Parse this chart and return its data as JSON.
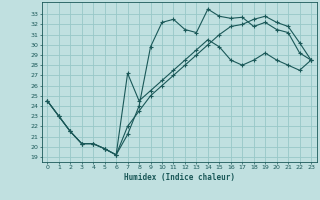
{
  "xlabel": "Humidex (Indice chaleur)",
  "bg_color": "#c0e0e0",
  "grid_color": "#98c8c8",
  "line_color": "#1a5858",
  "xlim": [
    -0.5,
    23.5
  ],
  "ylim": [
    18.5,
    34.2
  ],
  "xticks": [
    0,
    1,
    2,
    3,
    4,
    5,
    6,
    7,
    8,
    9,
    10,
    11,
    12,
    13,
    14,
    15,
    16,
    17,
    18,
    19,
    20,
    21,
    22,
    23
  ],
  "yticks": [
    19,
    20,
    21,
    22,
    23,
    24,
    25,
    26,
    27,
    28,
    29,
    30,
    31,
    32,
    33
  ],
  "line1_x": [
    0,
    1,
    2,
    3,
    4,
    5,
    6,
    7,
    8,
    9,
    10,
    11,
    12,
    13,
    14,
    15,
    16,
    17,
    18,
    19,
    20,
    21,
    22,
    23
  ],
  "line1_y": [
    24.5,
    23.0,
    21.5,
    20.3,
    20.3,
    19.8,
    19.2,
    21.2,
    24.0,
    29.8,
    32.2,
    32.5,
    31.5,
    31.2,
    33.5,
    32.8,
    32.6,
    32.7,
    31.8,
    32.2,
    31.5,
    31.2,
    29.2,
    28.5
  ],
  "line2_x": [
    0,
    1,
    2,
    3,
    4,
    5,
    6,
    7,
    8,
    9,
    10,
    11,
    12,
    13,
    14,
    15,
    16,
    17,
    18,
    19,
    20,
    21,
    22,
    23
  ],
  "line2_y": [
    24.5,
    23.0,
    21.5,
    20.3,
    20.3,
    19.8,
    19.2,
    22.0,
    23.5,
    25.0,
    26.0,
    27.0,
    28.0,
    29.0,
    30.0,
    31.0,
    31.8,
    32.0,
    32.5,
    32.8,
    32.2,
    31.8,
    30.2,
    28.5
  ],
  "line3_x": [
    0,
    1,
    2,
    3,
    4,
    5,
    6,
    7,
    8,
    9,
    10,
    11,
    12,
    13,
    14,
    15,
    16,
    17,
    18,
    19,
    20,
    21,
    22,
    23
  ],
  "line3_y": [
    24.5,
    23.0,
    21.5,
    20.3,
    20.3,
    19.8,
    19.2,
    27.2,
    24.5,
    25.5,
    26.5,
    27.5,
    28.5,
    29.5,
    30.5,
    29.8,
    28.5,
    28.0,
    28.5,
    29.2,
    28.5,
    28.0,
    27.5,
    28.5
  ]
}
